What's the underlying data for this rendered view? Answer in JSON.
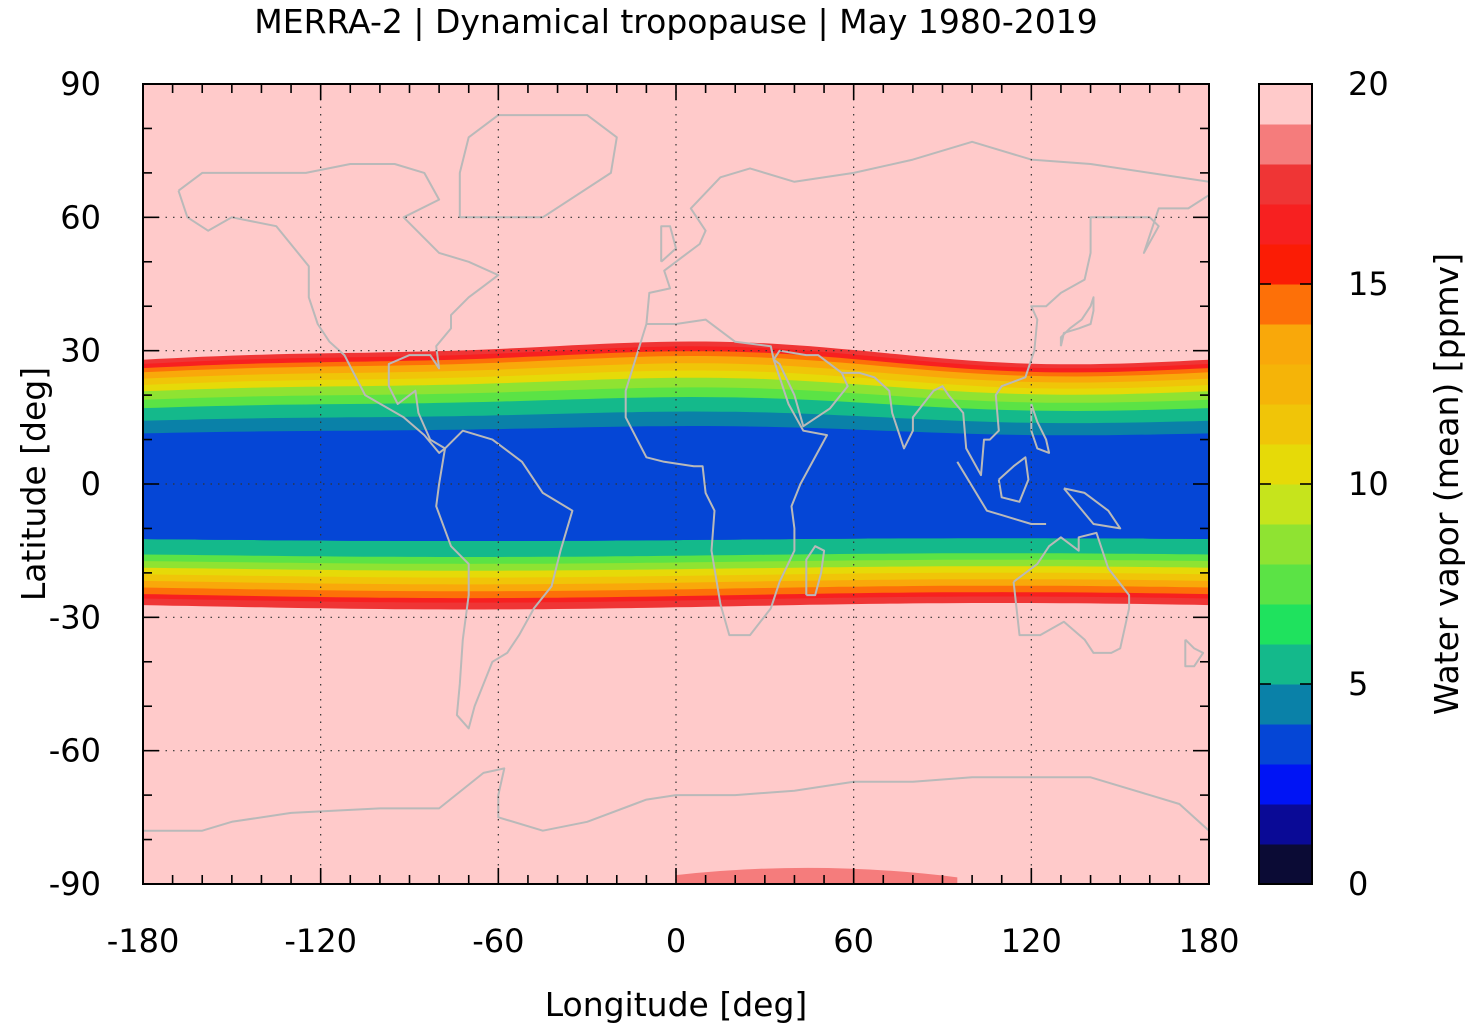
{
  "title": "MERRA-2 | Dynamical tropopause | May 1980-2019",
  "map": {
    "x_axis": {
      "label": "Longitude [deg]",
      "range": [
        -180,
        180
      ],
      "ticks": [
        {
          "value": -180,
          "label": "-180"
        },
        {
          "value": -120,
          "label": "-120"
        },
        {
          "value": -60,
          "label": "-60"
        },
        {
          "value": 0,
          "label": "0"
        },
        {
          "value": 60,
          "label": "60"
        },
        {
          "value": 120,
          "label": "120"
        },
        {
          "value": 180,
          "label": "180"
        }
      ],
      "minor_step": 10
    },
    "y_axis": {
      "label": "Latitude [deg]",
      "range": [
        -90,
        90
      ],
      "ticks": [
        {
          "value": -90,
          "label": "-90"
        },
        {
          "value": -60,
          "label": "-60"
        },
        {
          "value": -30,
          "label": "-30"
        },
        {
          "value": 0,
          "label": "0"
        },
        {
          "value": 30,
          "label": "30"
        },
        {
          "value": 60,
          "label": "60"
        },
        {
          "value": 90,
          "label": "90"
        }
      ],
      "minor_step": 10
    },
    "grid": "dotted",
    "background_color": "#ffcaca",
    "coastline_color": "#b9b9b9",
    "field": "Water vapor (mean) [ppmv]",
    "band_profile": [
      {
        "lat": -27.5,
        "value": 16.5
      },
      {
        "lat": -26.0,
        "value": 15.5
      },
      {
        "lat": -25.0,
        "value": 14.5
      },
      {
        "lat": -23.5,
        "value": 13.0
      },
      {
        "lat": -22.0,
        "value": 11.5
      },
      {
        "lat": -20.5,
        "value": 10.0
      },
      {
        "lat": -19.0,
        "value": 8.5
      },
      {
        "lat": -17.5,
        "value": 7.0
      },
      {
        "lat": -16.0,
        "value": 5.5
      },
      {
        "lat": -12.5,
        "value": 4.5
      },
      {
        "lat": 0,
        "value": 3.5
      },
      {
        "lat": 12.0,
        "value": 3.5
      },
      {
        "lat": 15.0,
        "value": 4.5
      },
      {
        "lat": 18.0,
        "value": 5.5
      },
      {
        "lat": 20.0,
        "value": 7.0
      },
      {
        "lat": 22.0,
        "value": 8.5
      },
      {
        "lat": 23.5,
        "value": 10.0
      },
      {
        "lat": 25.0,
        "value": 11.5
      },
      {
        "lat": 26.5,
        "value": 13.0
      },
      {
        "lat": 27.5,
        "value": 14.5
      },
      {
        "lat": 28.5,
        "value": 16.0
      },
      {
        "lat": 29.5,
        "value": 17.5
      }
    ],
    "antarctic_patch": {
      "value": 18.5,
      "lon_range": [
        0,
        95
      ]
    }
  },
  "colorbar": {
    "label": "Water vapor (mean) [ppmv]",
    "range": [
      0,
      20
    ],
    "ticks": [
      {
        "value": 0,
        "label": "0"
      },
      {
        "value": 5,
        "label": "5"
      },
      {
        "value": 10,
        "label": "10"
      },
      {
        "value": 15,
        "label": "15"
      },
      {
        "value": 20,
        "label": "20"
      }
    ],
    "levels": [
      {
        "from": 0,
        "to": 1,
        "color": "#0b0b35"
      },
      {
        "from": 1,
        "to": 2,
        "color": "#0a0a96"
      },
      {
        "from": 2,
        "to": 3,
        "color": "#0014f5"
      },
      {
        "from": 3,
        "to": 4,
        "color": "#0546d6"
      },
      {
        "from": 4,
        "to": 5,
        "color": "#0a81a8"
      },
      {
        "from": 5,
        "to": 6,
        "color": "#14b98b"
      },
      {
        "from": 6,
        "to": 7,
        "color": "#1fe25e"
      },
      {
        "from": 7,
        "to": 8,
        "color": "#5be345"
      },
      {
        "from": 8,
        "to": 9,
        "color": "#8fe332"
      },
      {
        "from": 9,
        "to": 10,
        "color": "#c6e41c"
      },
      {
        "from": 10,
        "to": 11,
        "color": "#e6da08"
      },
      {
        "from": 11,
        "to": 12,
        "color": "#f0c508"
      },
      {
        "from": 12,
        "to": 13,
        "color": "#f5b408"
      },
      {
        "from": 13,
        "to": 14,
        "color": "#f9a80a"
      },
      {
        "from": 14,
        "to": 15,
        "color": "#fd7008"
      },
      {
        "from": 15,
        "to": 16,
        "color": "#fb1c05"
      },
      {
        "from": 16,
        "to": 17,
        "color": "#f72020"
      },
      {
        "from": 17,
        "to": 18,
        "color": "#ef3535"
      },
      {
        "from": 18,
        "to": 19,
        "color": "#f57c7c"
      },
      {
        "from": 19,
        "to": 20,
        "color": "#ffcaca"
      }
    ]
  }
}
